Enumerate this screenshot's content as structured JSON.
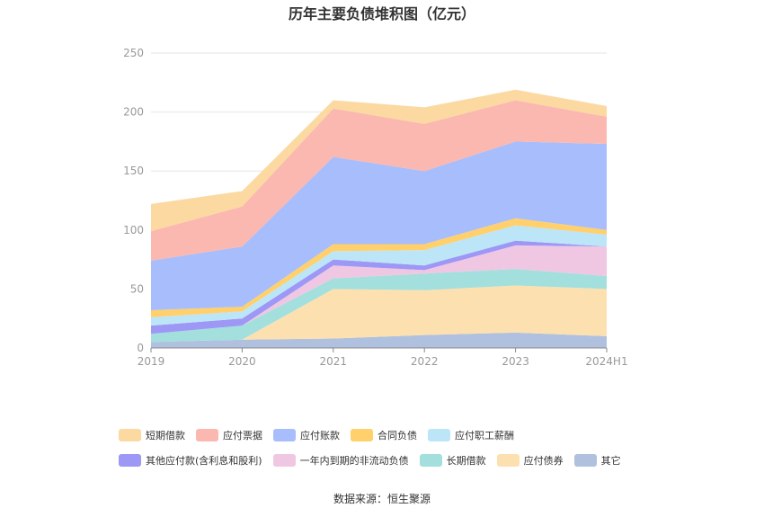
{
  "title": "历年主要负债堆积图（亿元）",
  "source": "数据来源：恒生聚源",
  "chart_data": {
    "type": "area",
    "stacked": true,
    "categories": [
      "2019",
      "2020",
      "2021",
      "2022",
      "2023",
      "2024H1"
    ],
    "ylim": [
      0,
      250
    ],
    "yticks": [
      0,
      50,
      100,
      150,
      200,
      250
    ],
    "grid": true,
    "legend_position": "bottom",
    "series": [
      {
        "name": "短期借款",
        "color": "#fbd9a1",
        "values": [
          23,
          13,
          7,
          14,
          9,
          9
        ]
      },
      {
        "name": "应付票据",
        "color": "#fbb8b0",
        "values": [
          25,
          34,
          41,
          40,
          35,
          23
        ]
      },
      {
        "name": "应付账款",
        "color": "#a8bdfb",
        "values": [
          42,
          51,
          74,
          62,
          65,
          73
        ]
      },
      {
        "name": "合同负债",
        "color": "#ffd06b",
        "values": [
          6,
          4,
          6,
          5,
          6,
          4
        ]
      },
      {
        "name": "应付职工薪酬",
        "color": "#bde5f8",
        "values": [
          7,
          6,
          7,
          13,
          13,
          10
        ]
      },
      {
        "name": "其他应付款(含利息和股利)",
        "color": "#9d97f5",
        "values": [
          7,
          6,
          5,
          4,
          4,
          0
        ]
      },
      {
        "name": "一年内到期的非流动负债",
        "color": "#efc7e2",
        "values": [
          0,
          0,
          11,
          3,
          20,
          25
        ]
      },
      {
        "name": "长期借款",
        "color": "#a3dfdd",
        "values": [
          7,
          12,
          9,
          14,
          14,
          11
        ]
      },
      {
        "name": "应付债券",
        "color": "#fde0b0",
        "values": [
          0,
          0,
          42,
          38,
          40,
          40
        ]
      },
      {
        "name": "其它",
        "color": "#afc1de",
        "values": [
          5,
          7,
          8,
          11,
          13,
          10
        ]
      }
    ]
  }
}
